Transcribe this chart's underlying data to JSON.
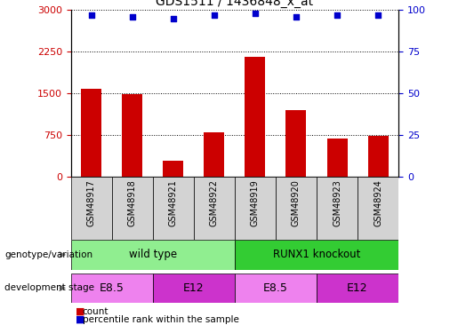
{
  "title": "GDS1511 / 1436848_x_at",
  "samples": [
    "GSM48917",
    "GSM48918",
    "GSM48921",
    "GSM48922",
    "GSM48919",
    "GSM48920",
    "GSM48923",
    "GSM48924"
  ],
  "counts": [
    1580,
    1490,
    290,
    790,
    2160,
    1200,
    680,
    730
  ],
  "percentiles": [
    97,
    96,
    95,
    97,
    98,
    96,
    97,
    97
  ],
  "ylim_left": [
    0,
    3000
  ],
  "ylim_right": [
    0,
    100
  ],
  "yticks_left": [
    0,
    750,
    1500,
    2250,
    3000
  ],
  "yticks_right": [
    0,
    25,
    50,
    75,
    100
  ],
  "bar_color": "#cc0000",
  "scatter_color": "#0000cc",
  "genotype_groups": [
    {
      "label": "wild type",
      "start": 0,
      "end": 4,
      "color": "#90ee90"
    },
    {
      "label": "RUNX1 knockout",
      "start": 4,
      "end": 8,
      "color": "#33cc33"
    }
  ],
  "dev_stage_groups": [
    {
      "label": "E8.5",
      "start": 0,
      "end": 2,
      "color": "#ee82ee"
    },
    {
      "label": "E12",
      "start": 2,
      "end": 4,
      "color": "#cc33cc"
    },
    {
      "label": "E8.5",
      "start": 4,
      "end": 6,
      "color": "#ee82ee"
    },
    {
      "label": "E12",
      "start": 6,
      "end": 8,
      "color": "#cc33cc"
    }
  ],
  "legend_count_color": "#cc0000",
  "legend_pct_color": "#0000cc",
  "row_label_genotype": "genotype/variation",
  "row_label_dev": "development stage",
  "sample_box_color": "#d3d3d3",
  "background_color": "#ffffff",
  "dotted_line_color": "#000000",
  "arrow_color": "#808080"
}
